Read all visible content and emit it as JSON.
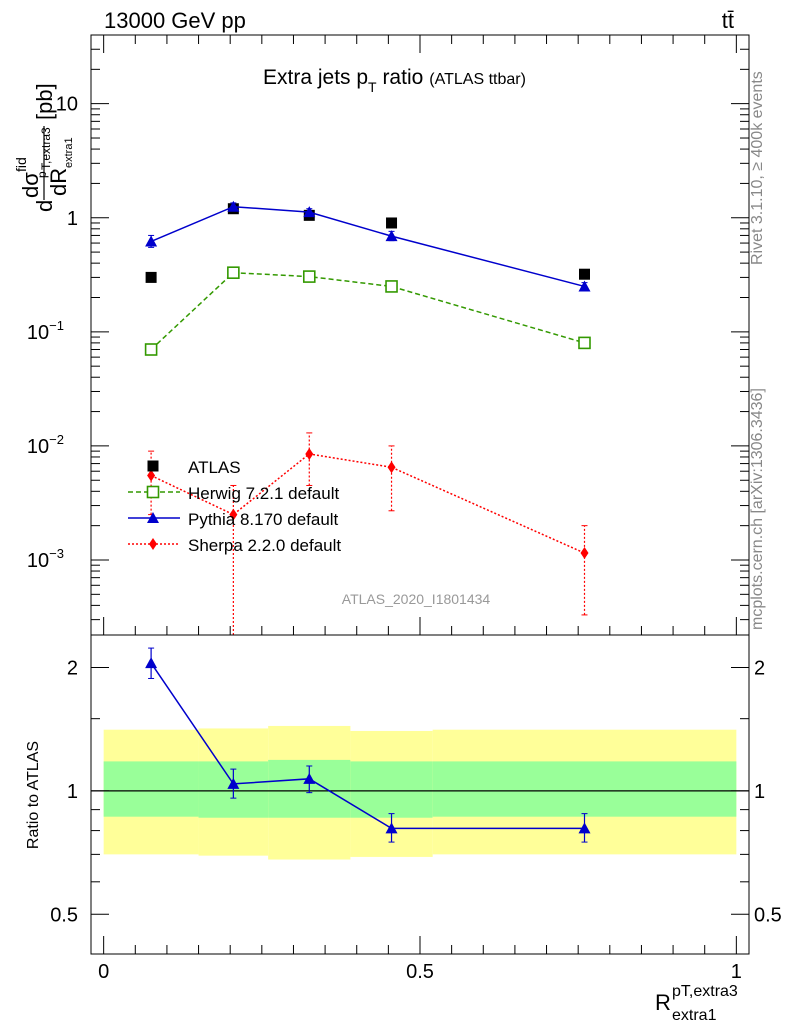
{
  "header": {
    "energy_label": "13000 GeV pp",
    "process_label": "tt̄",
    "side_rivet": "Rivet 3.1.10, ≥ 400k events",
    "side_site": "mcplots.cern.ch [arXiv:1306.3436]"
  },
  "chart_data": [
    {
      "type": "scatter",
      "title": "Extra jets p",
      "title_sub": "T",
      "title_tail": " ratio",
      "title_note": "(ATLAS ttbar)",
      "ylabel": "dσ/dR [pb]",
      "ylabel_parts": {
        "d1": "d",
        "sigma": "dσ",
        "fid": "fid",
        "sub": "p",
        "sub2": "T,extra3",
        "den": "dR",
        "den_sub": "extra1",
        "unit": "[pb]"
      },
      "yscale": "log",
      "ylim": [
        0.00022,
        40
      ],
      "xlim": [
        -0.02,
        1.02
      ],
      "y_ticks": [
        {
          "v": 10,
          "label": "10",
          "exp": ""
        },
        {
          "v": 1,
          "label": "1",
          "exp": ""
        },
        {
          "v": 0.1,
          "label": "10",
          "exp": "−1"
        },
        {
          "v": 0.01,
          "label": "10",
          "exp": "−2"
        },
        {
          "v": 0.001,
          "label": "10",
          "exp": "−3"
        }
      ],
      "watermark": "ATLAS_2020_I1801434",
      "legend_position": "lower-left",
      "series": [
        {
          "name": "ATLAS",
          "style": "data",
          "color": "#000000",
          "x": [
            0.075,
            0.205,
            0.325,
            0.455,
            0.76
          ],
          "y": [
            0.3,
            1.2,
            1.05,
            0.9,
            0.32
          ]
        },
        {
          "name": "Herwig 7.2.1 default",
          "style": "open-square-dashed",
          "color": "#339900",
          "x": [
            0.075,
            0.205,
            0.325,
            0.455,
            0.76
          ],
          "y": [
            0.07,
            0.33,
            0.305,
            0.25,
            0.08
          ]
        },
        {
          "name": "Pythia 8.170 default",
          "style": "triangle-solid",
          "color": "#0000cc",
          "x": [
            0.075,
            0.205,
            0.325,
            0.455,
            0.76
          ],
          "y": [
            0.62,
            1.25,
            1.12,
            0.69,
            0.25
          ],
          "err_lo": [
            0.55,
            1.16,
            1.04,
            0.63,
            0.23
          ],
          "err_hi": [
            0.7,
            1.35,
            1.2,
            0.76,
            0.27
          ]
        },
        {
          "name": "Sherpa 2.2.0 default",
          "style": "diamond-dotted",
          "color": "#ff0000",
          "x": [
            0.075,
            0.205,
            0.325,
            0.455,
            0.76
          ],
          "y": [
            0.0055,
            0.0025,
            0.0085,
            0.0065,
            0.00115
          ],
          "err_lo": [
            0.0025,
            0.00022,
            0.0045,
            0.0027,
            0.00033
          ],
          "err_hi": [
            0.009,
            0.0045,
            0.013,
            0.01,
            0.002
          ]
        }
      ]
    },
    {
      "type": "scatter",
      "ylabel": "Ratio to ATLAS",
      "xlabel_main": "R",
      "xlabel_sup": "pT,extra3",
      "xlabel_sub": "extra1",
      "yscale": "log",
      "ylim": [
        0.4,
        2.4
      ],
      "xlim": [
        -0.02,
        1.02
      ],
      "y_ticks": [
        {
          "v": 2,
          "label": "2"
        },
        {
          "v": 1,
          "label": "1"
        },
        {
          "v": 0.5,
          "label": "0.5"
        }
      ],
      "x_ticks": [
        {
          "v": 0,
          "label": "0"
        },
        {
          "v": 0.5,
          "label": "0.5"
        },
        {
          "v": 1,
          "label": "1"
        }
      ],
      "bands": [
        {
          "x0": 0.0,
          "x1": 0.15,
          "inner": [
            0.865,
            1.18
          ],
          "outer": [
            0.7,
            1.41
          ]
        },
        {
          "x0": 0.15,
          "x1": 0.26,
          "inner": [
            0.86,
            1.18
          ],
          "outer": [
            0.695,
            1.42
          ]
        },
        {
          "x0": 0.26,
          "x1": 0.39,
          "inner": [
            0.86,
            1.19
          ],
          "outer": [
            0.68,
            1.44
          ]
        },
        {
          "x0": 0.39,
          "x1": 0.52,
          "inner": [
            0.86,
            1.18
          ],
          "outer": [
            0.69,
            1.4
          ]
        },
        {
          "x0": 0.52,
          "x1": 1.0,
          "inner": [
            0.865,
            1.18
          ],
          "outer": [
            0.7,
            1.41
          ]
        }
      ],
      "series": [
        {
          "name": "Pythia 8.170 default / ATLAS",
          "color": "#0000cc",
          "x": [
            0.075,
            0.205,
            0.325,
            0.455,
            0.76
          ],
          "y": [
            2.05,
            1.04,
            1.07,
            0.81,
            0.81
          ],
          "err_lo": [
            1.88,
            0.96,
            0.99,
            0.75,
            0.75
          ],
          "err_hi": [
            2.23,
            1.13,
            1.15,
            0.88,
            0.88
          ]
        }
      ]
    }
  ],
  "colors": {
    "band_inner": "#99ff99",
    "band_outer": "#ffff99"
  }
}
